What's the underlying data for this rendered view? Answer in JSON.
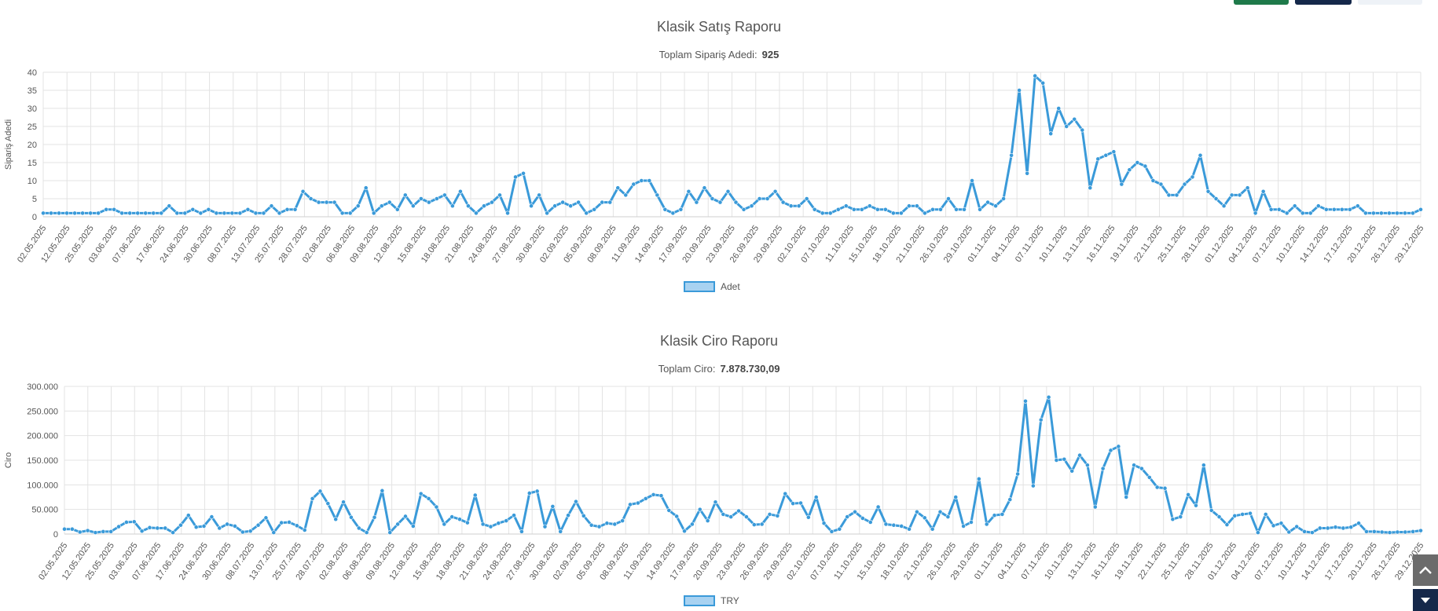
{
  "header_buttons": [
    {
      "name": "green-action-button",
      "color": "#1f7a4a"
    },
    {
      "name": "navy-action-button",
      "color": "#15284a"
    },
    {
      "name": "light-action-button",
      "color": "#eef2f7"
    }
  ],
  "sales": {
    "title": "Klasik Satış Raporu",
    "subtitle_label": "Toplam Sipariş Adedi:",
    "subtitle_value": "925"
  },
  "revenue": {
    "title": "Klasik Ciro Raporu",
    "subtitle_label": "Toplam Ciro:",
    "subtitle_value": "7.878.730,09"
  },
  "chart_data": [
    {
      "type": "line",
      "title": "Klasik Satış Raporu",
      "ylabel": "Sipariş Adedi",
      "xlabel": "",
      "ylim": [
        0,
        40
      ],
      "yticks": [
        "0",
        "5",
        "10",
        "15",
        "20",
        "25",
        "30",
        "35",
        "40"
      ],
      "legend": "Adet",
      "legend_position": "bottom",
      "color": "#3a9ad9",
      "x_tick_labels": [
        "02.05.2025",
        "12.05.2025",
        "25.05.2025",
        "03.06.2025",
        "07.06.2025",
        "17.06.2025",
        "24.06.2025",
        "30.06.2025",
        "08.07.2025",
        "13.07.2025",
        "25.07.2025",
        "28.07.2025",
        "02.08.2025",
        "06.08.2025",
        "09.08.2025",
        "12.08.2025",
        "15.08.2025",
        "18.08.2025",
        "21.08.2025",
        "24.08.2025",
        "27.08.2025",
        "30.08.2025",
        "02.09.2025",
        "05.09.2025",
        "08.09.2025",
        "11.09.2025",
        "14.09.2025",
        "17.09.2025",
        "20.09.2025",
        "23.09.2025",
        "26.09.2025",
        "29.09.2025",
        "02.10.2025",
        "07.10.2025",
        "11.10.2025",
        "15.10.2025",
        "18.10.2025",
        "21.10.2025",
        "26.10.2025",
        "29.10.2025",
        "01.11.2025",
        "04.11.2025",
        "07.11.2025",
        "10.11.2025",
        "13.11.2025",
        "16.11.2025",
        "19.11.2025",
        "22.11.2025",
        "25.11.2025",
        "28.11.2025",
        "01.12.2025",
        "04.12.2025",
        "07.12.2025",
        "10.12.2025",
        "14.12.2025",
        "17.12.2025",
        "20.12.2025",
        "26.12.2025",
        "29.12.2025"
      ],
      "values": [
        1,
        1,
        1,
        1,
        1,
        1,
        1,
        1,
        2,
        2,
        1,
        1,
        1,
        1,
        1,
        1,
        3,
        1,
        1,
        2,
        1,
        2,
        1,
        1,
        1,
        1,
        2,
        1,
        1,
        3,
        1,
        2,
        2,
        7,
        5,
        4,
        4,
        4,
        1,
        1,
        3,
        8,
        1,
        3,
        4,
        2,
        6,
        3,
        5,
        4,
        5,
        6,
        3,
        7,
        3,
        1,
        3,
        4,
        6,
        1,
        11,
        12,
        3,
        6,
        1,
        3,
        4,
        3,
        4,
        1,
        2,
        4,
        4,
        8,
        6,
        9,
        10,
        10,
        6,
        2,
        1,
        2,
        7,
        4,
        8,
        5,
        4,
        7,
        4,
        2,
        3,
        5,
        5,
        7,
        4,
        3,
        3,
        5,
        2,
        1,
        1,
        2,
        3,
        2,
        2,
        3,
        2,
        2,
        1,
        1,
        3,
        3,
        1,
        2,
        2,
        5,
        2,
        2,
        10,
        2,
        4,
        3,
        5,
        17,
        35,
        12,
        39,
        37,
        23,
        30,
        25,
        27,
        24,
        8,
        16,
        17,
        18,
        9,
        13,
        15,
        14,
        10,
        9,
        6,
        6,
        9,
        11,
        17,
        7,
        5,
        3,
        6,
        6,
        8,
        1,
        7,
        2,
        2,
        1,
        3,
        1,
        1,
        3,
        2,
        2,
        2,
        2,
        3,
        1,
        1,
        1,
        1,
        1,
        1,
        1,
        2
      ]
    },
    {
      "type": "line",
      "title": "Klasik Ciro Raporu",
      "ylabel": "Ciro",
      "xlabel": "",
      "ylim": [
        0,
        300000
      ],
      "yticks": [
        "0",
        "50.000",
        "100.000",
        "150.000",
        "200.000",
        "250.000",
        "300.000"
      ],
      "legend": "TRY",
      "legend_position": "bottom",
      "color": "#3a9ad9",
      "x_tick_labels": [
        "02.05.2025",
        "12.05.2025",
        "25.05.2025",
        "03.06.2025",
        "07.06.2025",
        "17.06.2025",
        "24.06.2025",
        "30.06.2025",
        "08.07.2025",
        "13.07.2025",
        "25.07.2025",
        "28.07.2025",
        "02.08.2025",
        "06.08.2025",
        "09.08.2025",
        "12.08.2025",
        "15.08.2025",
        "18.08.2025",
        "21.08.2025",
        "24.08.2025",
        "27.08.2025",
        "30.08.2025",
        "02.09.2025",
        "05.09.2025",
        "08.09.2025",
        "11.09.2025",
        "14.09.2025",
        "17.09.2025",
        "20.09.2025",
        "23.09.2025",
        "26.09.2025",
        "29.09.2025",
        "02.10.2025",
        "07.10.2025",
        "11.10.2025",
        "15.10.2025",
        "18.10.2025",
        "21.10.2025",
        "26.10.2025",
        "29.10.2025",
        "01.11.2025",
        "04.11.2025",
        "07.11.2025",
        "10.11.2025",
        "13.11.2025",
        "16.11.2025",
        "19.11.2025",
        "22.11.2025",
        "25.11.2025",
        "28.11.2025",
        "01.12.2025",
        "04.12.2025",
        "07.12.2025",
        "10.12.2025",
        "14.12.2025",
        "17.12.2025",
        "20.12.2025",
        "26.12.2025",
        "29.12.2025"
      ],
      "values": [
        10000,
        10000,
        4000,
        7000,
        3000,
        5000,
        5000,
        15000,
        24000,
        25000,
        6000,
        13000,
        12000,
        12000,
        3000,
        18000,
        38000,
        14000,
        16000,
        35000,
        12000,
        20000,
        16000,
        4000,
        6000,
        18000,
        33000,
        3000,
        23000,
        24000,
        17000,
        8000,
        72000,
        87000,
        62000,
        30000,
        65000,
        34000,
        12000,
        3000,
        34000,
        88000,
        3000,
        20000,
        36000,
        16000,
        82000,
        72000,
        55000,
        20000,
        35000,
        30000,
        23000,
        79000,
        20000,
        15000,
        22000,
        27000,
        38000,
        5000,
        83000,
        87000,
        15000,
        56000,
        5000,
        38000,
        66000,
        37000,
        18000,
        15000,
        22000,
        20000,
        27000,
        60000,
        63000,
        72000,
        80000,
        78000,
        48000,
        36000,
        6000,
        20000,
        50000,
        27000,
        65000,
        40000,
        35000,
        47000,
        35000,
        19000,
        20000,
        40000,
        37000,
        82000,
        62000,
        63000,
        34000,
        75000,
        22000,
        5000,
        10000,
        35000,
        45000,
        32000,
        24000,
        55000,
        20000,
        18000,
        16000,
        10000,
        45000,
        33000,
        10000,
        45000,
        35000,
        75000,
        16000,
        24000,
        112000,
        20000,
        38000,
        40000,
        70000,
        122000,
        270000,
        98000,
        232000,
        278000,
        150000,
        152000,
        128000,
        160000,
        140000,
        55000,
        133000,
        170000,
        178000,
        75000,
        140000,
        133000,
        115000,
        95000,
        93000,
        30000,
        35000,
        80000,
        58000,
        140000,
        48000,
        35000,
        19000,
        37000,
        40000,
        42000,
        3000,
        40000,
        17000,
        22000,
        4000,
        15000,
        5000,
        3000,
        12000,
        12000,
        14000,
        12000,
        14000,
        22000,
        5000,
        5000,
        4000,
        3000,
        4000,
        4000,
        5000,
        7000
      ]
    }
  ]
}
